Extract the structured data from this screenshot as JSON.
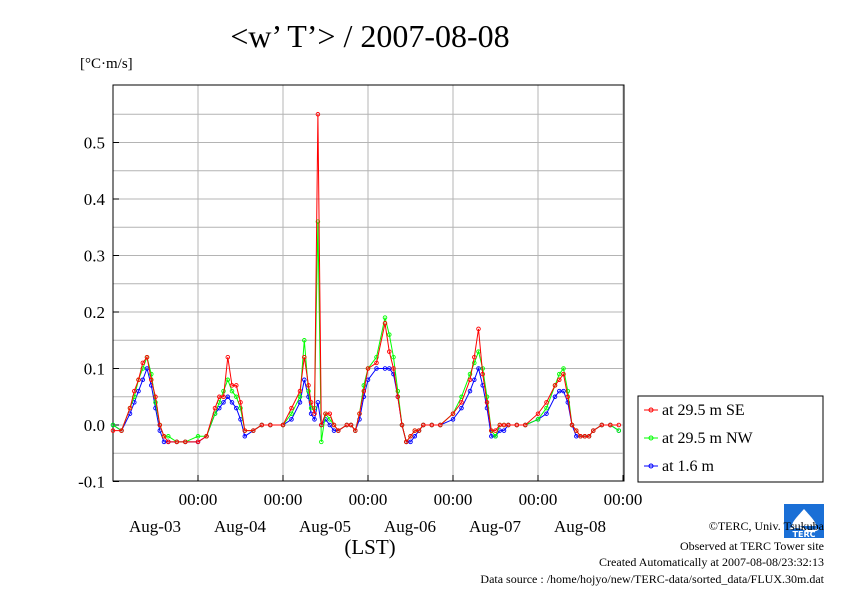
{
  "page": {
    "title": "<w’ T’> / 2007-08-08",
    "unit": "[°C·m/s]"
  },
  "chart_data": {
    "type": "line",
    "title": "<w’ T’> / 2007-08-08",
    "ylabel": "[°C·m/s]",
    "xlabel": "(LST)",
    "ylim": [
      -0.1,
      0.6
    ],
    "xlim": [
      0,
      6
    ],
    "grid": true,
    "legend_position": "right, outside plot",
    "y_ticks": [
      "-0.1",
      "0.0",
      "0.1",
      "0.2",
      "0.3",
      "0.4",
      "0.5"
    ],
    "x_tick_labels": [
      {
        "x": 1,
        "time": "00:00",
        "date": "Aug-03"
      },
      {
        "x": 2,
        "time": "00:00",
        "date": "Aug-04"
      },
      {
        "x": 3,
        "time": "00:00",
        "date": "Aug-05"
      },
      {
        "x": 4,
        "time": "00:00",
        "date": "Aug-06"
      },
      {
        "x": 5,
        "time": "00:00",
        "date": "Aug-07"
      },
      {
        "x": 6,
        "time": "00:00",
        "date": "Aug-08"
      }
    ],
    "series": [
      {
        "name": "at 29.5 m SE",
        "color": "#ff0000",
        "x": [
          0.0,
          0.1,
          0.2,
          0.25,
          0.3,
          0.35,
          0.4,
          0.45,
          0.5,
          0.55,
          0.6,
          0.65,
          0.75,
          0.85,
          1.0,
          1.1,
          1.2,
          1.25,
          1.3,
          1.35,
          1.4,
          1.45,
          1.5,
          1.55,
          1.65,
          1.75,
          1.85,
          2.0,
          2.1,
          2.2,
          2.25,
          2.3,
          2.33,
          2.37,
          2.41,
          2.45,
          2.5,
          2.55,
          2.6,
          2.65,
          2.75,
          2.8,
          2.85,
          2.9,
          2.95,
          3.0,
          3.1,
          3.2,
          3.25,
          3.3,
          3.35,
          3.4,
          3.45,
          3.5,
          3.55,
          3.6,
          3.65,
          3.75,
          3.85,
          4.0,
          4.1,
          4.2,
          4.25,
          4.3,
          4.35,
          4.4,
          4.45,
          4.5,
          4.55,
          4.6,
          4.65,
          4.75,
          4.85,
          5.0,
          5.1,
          5.2,
          5.25,
          5.3,
          5.35,
          5.4,
          5.45,
          5.5,
          5.55,
          5.6,
          5.65,
          5.75,
          5.85,
          5.95
        ],
        "values": [
          -0.01,
          -0.01,
          0.03,
          0.06,
          0.08,
          0.11,
          0.12,
          0.08,
          0.05,
          0.0,
          -0.02,
          -0.03,
          -0.03,
          -0.03,
          -0.03,
          -0.02,
          0.03,
          0.05,
          0.05,
          0.12,
          0.07,
          0.07,
          0.04,
          -0.01,
          -0.01,
          0.0,
          0.0,
          0.0,
          0.03,
          0.06,
          0.12,
          0.07,
          0.04,
          0.02,
          0.55,
          0.0,
          0.02,
          0.02,
          0.0,
          -0.01,
          0.0,
          0.0,
          -0.01,
          0.02,
          0.06,
          0.1,
          0.11,
          0.18,
          0.13,
          0.1,
          0.05,
          0.0,
          -0.03,
          -0.02,
          -0.01,
          -0.01,
          0.0,
          0.0,
          0.0,
          0.02,
          0.04,
          0.08,
          0.12,
          0.17,
          0.09,
          0.04,
          -0.01,
          -0.01,
          0.0,
          0.0,
          0.0,
          0.0,
          0.0,
          0.02,
          0.04,
          0.07,
          0.08,
          0.09,
          0.05,
          0.0,
          -0.01,
          -0.02,
          -0.02,
          -0.02,
          -0.01,
          0.0,
          0.0,
          0.0
        ]
      },
      {
        "name": "at 29.5 m NW",
        "color": "#00ff00",
        "x": [
          0.0,
          0.1,
          0.2,
          0.25,
          0.3,
          0.35,
          0.4,
          0.45,
          0.5,
          0.55,
          0.6,
          0.65,
          0.75,
          0.85,
          1.0,
          1.1,
          1.2,
          1.25,
          1.3,
          1.35,
          1.4,
          1.45,
          1.5,
          1.55,
          1.65,
          1.75,
          1.85,
          2.0,
          2.1,
          2.2,
          2.25,
          2.3,
          2.33,
          2.37,
          2.41,
          2.45,
          2.5,
          2.55,
          2.6,
          2.65,
          2.75,
          2.8,
          2.85,
          2.9,
          2.95,
          3.0,
          3.1,
          3.2,
          3.25,
          3.3,
          3.35,
          3.4,
          3.45,
          3.5,
          3.55,
          3.6,
          3.65,
          3.75,
          3.85,
          4.0,
          4.1,
          4.2,
          4.25,
          4.3,
          4.35,
          4.4,
          4.45,
          4.5,
          4.55,
          4.6,
          4.65,
          4.75,
          4.85,
          5.0,
          5.1,
          5.2,
          5.25,
          5.3,
          5.35,
          5.4,
          5.45,
          5.5,
          5.55,
          5.6,
          5.65,
          5.75,
          5.85,
          5.95
        ],
        "values": [
          0.0,
          -0.01,
          0.03,
          0.05,
          0.08,
          0.1,
          0.12,
          0.09,
          0.04,
          0.0,
          -0.02,
          -0.02,
          -0.03,
          -0.03,
          -0.02,
          -0.02,
          0.02,
          0.04,
          0.06,
          0.08,
          0.06,
          0.05,
          0.03,
          -0.01,
          -0.01,
          0.0,
          0.0,
          0.0,
          0.02,
          0.05,
          0.15,
          0.06,
          0.03,
          0.03,
          0.36,
          -0.03,
          0.02,
          0.01,
          0.0,
          -0.01,
          0.0,
          0.0,
          -0.01,
          0.02,
          0.07,
          0.1,
          0.12,
          0.19,
          0.16,
          0.12,
          0.06,
          0.0,
          -0.03,
          -0.02,
          -0.01,
          -0.01,
          0.0,
          0.0,
          0.0,
          0.02,
          0.05,
          0.09,
          0.11,
          0.13,
          0.1,
          0.05,
          -0.01,
          -0.02,
          0.0,
          0.0,
          0.0,
          0.0,
          0.0,
          0.01,
          0.03,
          0.07,
          0.09,
          0.1,
          0.06,
          0.0,
          -0.01,
          -0.02,
          -0.02,
          -0.02,
          -0.01,
          0.0,
          0.0,
          -0.01
        ]
      },
      {
        "name": "at 1.6 m",
        "color": "#0000ff",
        "x": [
          0.0,
          0.1,
          0.2,
          0.25,
          0.3,
          0.35,
          0.4,
          0.45,
          0.5,
          0.55,
          0.6,
          0.65,
          0.75,
          0.85,
          1.0,
          1.1,
          1.2,
          1.25,
          1.3,
          1.35,
          1.4,
          1.45,
          1.5,
          1.55,
          1.65,
          1.75,
          1.85,
          2.0,
          2.1,
          2.2,
          2.25,
          2.3,
          2.33,
          2.37,
          2.41,
          2.45,
          2.5,
          2.55,
          2.6,
          2.65,
          2.75,
          2.8,
          2.85,
          2.9,
          2.95,
          3.0,
          3.1,
          3.2,
          3.25,
          3.3,
          3.35,
          3.4,
          3.45,
          3.5,
          3.55,
          3.6,
          3.65,
          3.75,
          3.85,
          4.0,
          4.1,
          4.2,
          4.25,
          4.3,
          4.35,
          4.4,
          4.45,
          4.5,
          4.55,
          4.6,
          4.65,
          4.75,
          4.85,
          5.0,
          5.1,
          5.2,
          5.25,
          5.3,
          5.35,
          5.4,
          5.45,
          5.5,
          5.55,
          5.6,
          5.65,
          5.75,
          5.85,
          5.95
        ],
        "values": [
          0.0,
          -0.01,
          0.02,
          0.04,
          0.06,
          0.08,
          0.1,
          0.07,
          0.03,
          -0.01,
          -0.03,
          -0.03,
          -0.03,
          -0.03,
          -0.03,
          -0.02,
          0.02,
          0.03,
          0.04,
          0.05,
          0.04,
          0.03,
          0.01,
          -0.02,
          -0.01,
          0.0,
          0.0,
          0.0,
          0.01,
          0.04,
          0.08,
          0.05,
          0.02,
          0.01,
          0.04,
          0.0,
          0.01,
          0.0,
          -0.01,
          -0.01,
          0.0,
          0.0,
          -0.01,
          0.01,
          0.05,
          0.08,
          0.1,
          0.1,
          0.1,
          0.09,
          0.05,
          0.0,
          -0.03,
          -0.03,
          -0.02,
          -0.01,
          0.0,
          0.0,
          0.0,
          0.01,
          0.03,
          0.06,
          0.08,
          0.1,
          0.07,
          0.03,
          -0.02,
          -0.02,
          -0.01,
          -0.01,
          0.0,
          0.0,
          0.0,
          0.01,
          0.02,
          0.05,
          0.06,
          0.06,
          0.04,
          0.0,
          -0.02,
          -0.02,
          -0.02,
          -0.02,
          -0.01,
          0.0,
          0.0,
          -0.01
        ]
      }
    ]
  },
  "legend": {
    "items": [
      {
        "label": "at 29.5 m SE",
        "color": "#ff0000"
      },
      {
        "label": "at 29.5 m NW",
        "color": "#00ff00"
      },
      {
        "label": "at 1.6 m",
        "color": "#0000ff"
      }
    ]
  },
  "logo": {
    "text": "TERC",
    "color": "#1a6fd6"
  },
  "footer": {
    "copyright": "©TERC, Univ. Tsukuba",
    "observed": "Observed at TERC Tower site",
    "created": "Created Automatically at 2007-08-08/23:32:13",
    "source": "Data source : /home/hojyo/new/TERC-data/sorted_data/FLUX.30m.dat"
  }
}
